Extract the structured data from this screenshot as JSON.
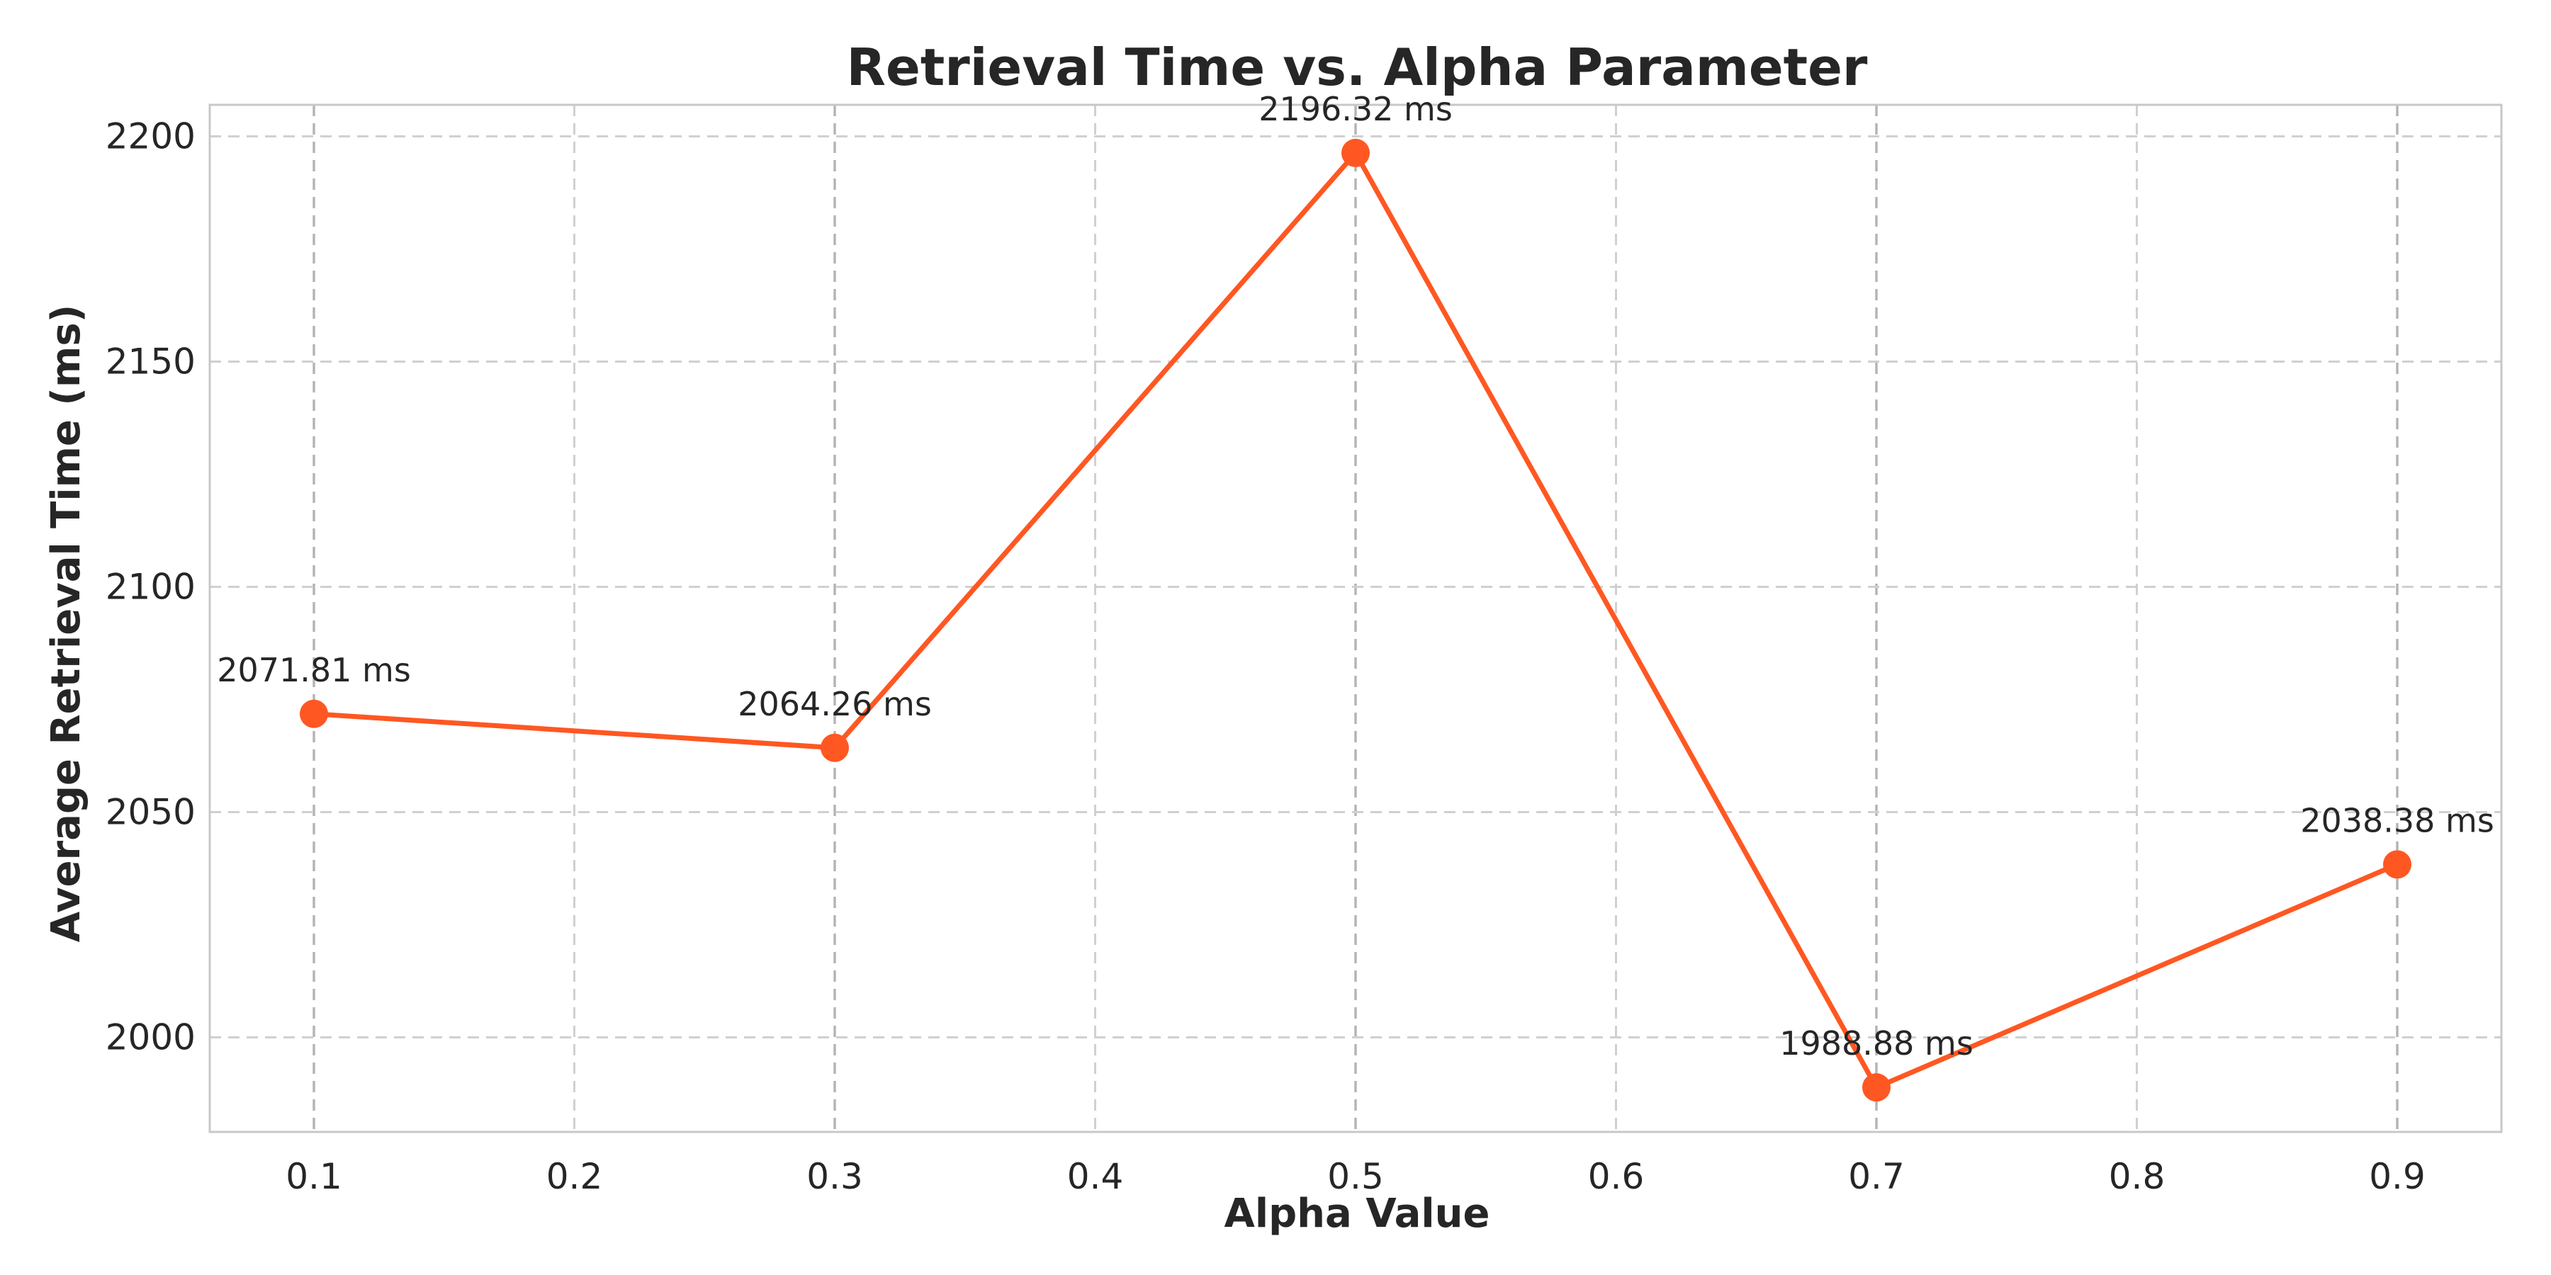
{
  "chart_data": {
    "type": "line",
    "title": "Retrieval Time vs. Alpha Parameter",
    "xlabel": "Alpha Value",
    "ylabel": "Average Retrieval Time (ms)",
    "xlim": [
      0.06,
      0.94
    ],
    "ylim": [
      1979,
      2207
    ],
    "xticks": [
      0.1,
      0.2,
      0.3,
      0.4,
      0.5,
      0.6,
      0.7,
      0.8,
      0.9
    ],
    "xtick_labels": [
      "0.1",
      "0.2",
      "0.3",
      "0.4",
      "0.5",
      "0.6",
      "0.7",
      "0.8",
      "0.9"
    ],
    "yticks": [
      2000,
      2050,
      2100,
      2150,
      2200
    ],
    "ytick_labels": [
      "2000",
      "2050",
      "2100",
      "2150",
      "2200"
    ],
    "grid": true,
    "highlighted_x": [
      0.1,
      0.3,
      0.5,
      0.7,
      0.9
    ],
    "series": [
      {
        "color": "#FF5722",
        "x": [
          0.1,
          0.3,
          0.5,
          0.7,
          0.9
        ],
        "y": [
          2071.81,
          2064.26,
          2196.32,
          1988.88,
          2038.38
        ],
        "labels": [
          "2071.81 ms",
          "2064.26 ms",
          "2196.32 ms",
          "1988.88 ms",
          "2038.38 ms"
        ]
      }
    ],
    "colors": {
      "line": "#FF5722",
      "grid": "#d0d0d0",
      "highlight_grid": "#a8a8a8",
      "frame": "#c8c8c8",
      "text": "#262626"
    }
  }
}
